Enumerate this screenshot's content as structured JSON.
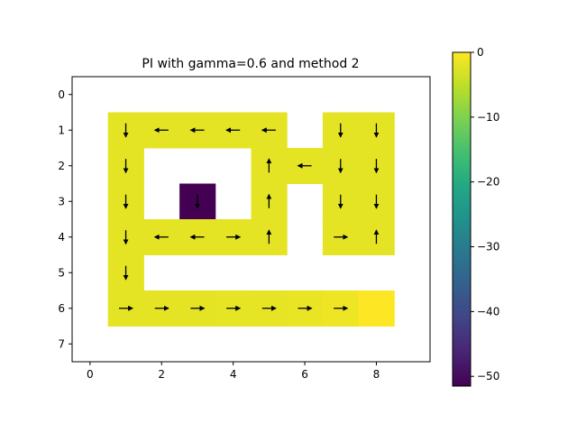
{
  "chart_data": {
    "type": "heatmap",
    "title": "PI with gamma=0.6 and method 2",
    "xlim": [
      -0.5,
      9.5
    ],
    "ylim": [
      7.5,
      -0.5
    ],
    "x_ticks": [
      0,
      2,
      4,
      6,
      8
    ],
    "y_ticks": [
      0,
      1,
      2,
      3,
      4,
      5,
      6,
      7
    ],
    "colormap": "viridis",
    "vmin": -51.5,
    "vmax": 0,
    "colorbar_ticks": [
      0,
      -10,
      -20,
      -30,
      -40,
      -50
    ],
    "colorbar_tick_labels": [
      "0",
      "−10",
      "−20",
      "−30",
      "−40",
      "−50"
    ],
    "cells": [
      {
        "row": 1,
        "col": 1,
        "value": -2.0,
        "arrow": "down"
      },
      {
        "row": 1,
        "col": 2,
        "value": -2.0,
        "arrow": "left"
      },
      {
        "row": 1,
        "col": 3,
        "value": -2.0,
        "arrow": "left"
      },
      {
        "row": 1,
        "col": 4,
        "value": -2.0,
        "arrow": "left"
      },
      {
        "row": 1,
        "col": 5,
        "value": -2.0,
        "arrow": "left"
      },
      {
        "row": 1,
        "col": 7,
        "value": -2.0,
        "arrow": "down"
      },
      {
        "row": 1,
        "col": 8,
        "value": -2.0,
        "arrow": "down"
      },
      {
        "row": 2,
        "col": 1,
        "value": -2.0,
        "arrow": "down"
      },
      {
        "row": 2,
        "col": 5,
        "value": -2.0,
        "arrow": "up"
      },
      {
        "row": 2,
        "col": 6,
        "value": -2.0,
        "arrow": "left"
      },
      {
        "row": 2,
        "col": 7,
        "value": -2.0,
        "arrow": "down"
      },
      {
        "row": 2,
        "col": 8,
        "value": -2.0,
        "arrow": "down"
      },
      {
        "row": 3,
        "col": 1,
        "value": -2.0,
        "arrow": "down"
      },
      {
        "row": 3,
        "col": 3,
        "value": -51.5,
        "arrow": "down"
      },
      {
        "row": 3,
        "col": 5,
        "value": -2.0,
        "arrow": "up"
      },
      {
        "row": 3,
        "col": 7,
        "value": -2.0,
        "arrow": "down"
      },
      {
        "row": 3,
        "col": 8,
        "value": -2.0,
        "arrow": "down"
      },
      {
        "row": 4,
        "col": 1,
        "value": -2.0,
        "arrow": "down"
      },
      {
        "row": 4,
        "col": 2,
        "value": -2.0,
        "arrow": "left"
      },
      {
        "row": 4,
        "col": 3,
        "value": -2.0,
        "arrow": "left"
      },
      {
        "row": 4,
        "col": 4,
        "value": -2.0,
        "arrow": "right"
      },
      {
        "row": 4,
        "col": 5,
        "value": -2.0,
        "arrow": "up"
      },
      {
        "row": 4,
        "col": 7,
        "value": -2.0,
        "arrow": "right"
      },
      {
        "row": 4,
        "col": 8,
        "value": -2.0,
        "arrow": "up"
      },
      {
        "row": 5,
        "col": 1,
        "value": -2.0,
        "arrow": "down"
      },
      {
        "row": 6,
        "col": 1,
        "value": -2.0,
        "arrow": "right"
      },
      {
        "row": 6,
        "col": 2,
        "value": -2.0,
        "arrow": "right"
      },
      {
        "row": 6,
        "col": 3,
        "value": -2.0,
        "arrow": "right"
      },
      {
        "row": 6,
        "col": 4,
        "value": -1.9,
        "arrow": "right"
      },
      {
        "row": 6,
        "col": 5,
        "value": -1.8,
        "arrow": "right"
      },
      {
        "row": 6,
        "col": 6,
        "value": -1.6,
        "arrow": "right"
      },
      {
        "row": 6,
        "col": 7,
        "value": -1.2,
        "arrow": "right"
      },
      {
        "row": 6,
        "col": 8,
        "value": 0.0,
        "arrow": null
      }
    ]
  }
}
